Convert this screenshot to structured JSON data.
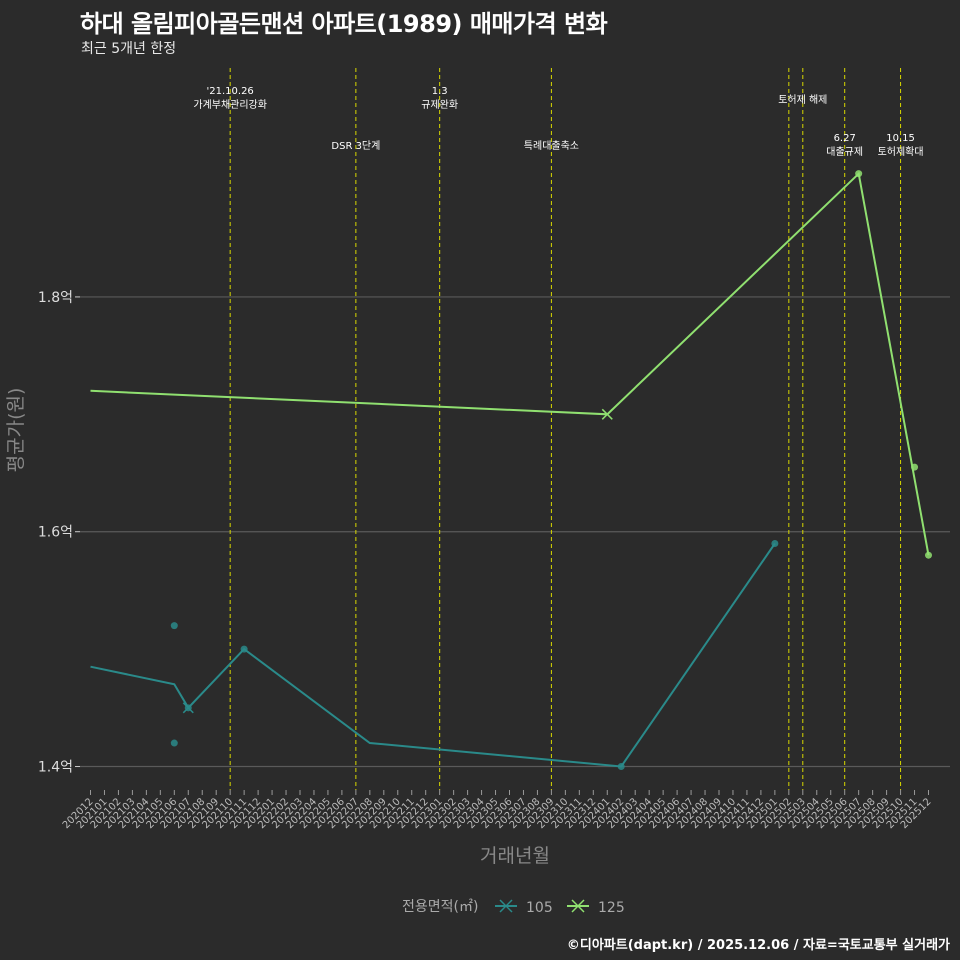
{
  "title": "하대 올림피아골든맨션 아파트(1989) 매매가격 변화",
  "subtitle": "최근 5개년 한정",
  "caption": "©디아파트(dapt.kr) / 2025.12.06 / 자료=국토교통부 실거래가",
  "chart_data": {
    "type": "line",
    "xlabel": "거래년월",
    "ylabel": "평균가(원)",
    "yticks": [
      1.4,
      1.6,
      1.8
    ],
    "ytick_labels": [
      "1.4억",
      "1.6억",
      "1.8억"
    ],
    "ylim": [
      1.38,
      1.995
    ],
    "categories": [
      "202012",
      "202101",
      "202102",
      "202103",
      "202104",
      "202105",
      "202106",
      "202107",
      "202108",
      "202109",
      "202110",
      "202111",
      "202112",
      "202201",
      "202202",
      "202203",
      "202204",
      "202205",
      "202206",
      "202207",
      "202208",
      "202209",
      "202210",
      "202211",
      "202212",
      "202301",
      "202302",
      "202303",
      "202304",
      "202305",
      "202306",
      "202307",
      "202308",
      "202309",
      "202310",
      "202311",
      "202312",
      "202401",
      "202402",
      "202403",
      "202404",
      "202405",
      "202406",
      "202407",
      "202408",
      "202409",
      "202410",
      "202411",
      "202412",
      "202501",
      "202502",
      "202503",
      "202504",
      "202505",
      "202506",
      "202507",
      "202508",
      "202509",
      "202510",
      "202511",
      "202512"
    ],
    "legend_title": "전용면적(㎡)",
    "series": [
      {
        "name": "105",
        "color": "#2a8a8a",
        "marker": "x",
        "line": [
          [
            "202012",
            1.485
          ],
          [
            "202106",
            1.47
          ],
          [
            "202107",
            1.45
          ],
          [
            "202111",
            1.5
          ],
          [
            "202208",
            1.42
          ],
          [
            "202402",
            1.4
          ],
          [
            "202501",
            1.59
          ]
        ],
        "points": [
          [
            "202106",
            1.52
          ],
          [
            "202106",
            1.42
          ],
          [
            "202107",
            1.45
          ],
          [
            "202111",
            1.5
          ],
          [
            "202402",
            1.4
          ],
          [
            "202501",
            1.59
          ]
        ],
        "cross_at": "202107"
      },
      {
        "name": "125",
        "color": "#90e070",
        "marker": "x",
        "line": [
          [
            "202012",
            1.72
          ],
          [
            "202401",
            1.7
          ],
          [
            "202507",
            1.905
          ],
          [
            "202512",
            1.58
          ]
        ],
        "points": [
          [
            "202507",
            1.905
          ],
          [
            "202512",
            1.58
          ],
          [
            "202511",
            1.655
          ]
        ],
        "cross_at": "202401"
      }
    ],
    "events": [
      {
        "month": "202110",
        "label": "'21.10.26\n가계부채관리강화",
        "row": 1
      },
      {
        "month": "202207",
        "label": "DSR 3단계",
        "row": 3
      },
      {
        "month": "202301",
        "label": "1.3\n규제완화",
        "row": 1
      },
      {
        "month": "202309",
        "label": "특례대출축소",
        "row": 3
      },
      {
        "month": "202502",
        "label": "",
        "row": 0
      },
      {
        "month": "202503",
        "label": "토허제 해제",
        "row": 2
      },
      {
        "month": "202506",
        "label": "6.27\n대출규제",
        "row": 4
      },
      {
        "month": "202510",
        "label": "10.15\n토허제확대",
        "row": 4
      }
    ]
  }
}
